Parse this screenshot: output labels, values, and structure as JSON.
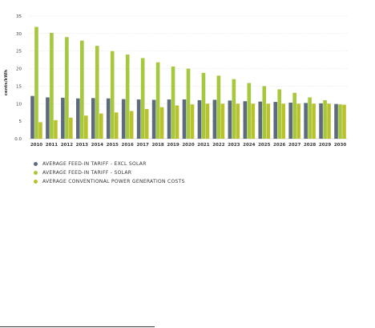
{
  "chart_data": {
    "type": "bar",
    "title": "",
    "xlabel": "",
    "ylabel": "cents/kWh",
    "ylim": [
      0,
      35
    ],
    "yticks": [
      "0.0",
      "5",
      "10",
      "15",
      "20",
      "25",
      "30",
      "35"
    ],
    "grid": true,
    "legend_position": "bottom-left",
    "categories": [
      "2010",
      "2011",
      "2012",
      "2013",
      "2014",
      "2015",
      "2016",
      "2017",
      "2018",
      "2019",
      "2020",
      "2021",
      "2022",
      "2023",
      "2024",
      "2025",
      "2026",
      "2027",
      "2028",
      "2029",
      "2030"
    ],
    "series": [
      {
        "name": "AVERAGE FEED-IN TARIFF - EXCL SOLAR",
        "color": "#5e6b7e",
        "values": [
          12.2,
          11.8,
          11.7,
          11.5,
          11.6,
          11.5,
          11.3,
          11.2,
          11.1,
          11.2,
          11.2,
          11.0,
          11.1,
          10.9,
          10.7,
          10.6,
          10.5,
          10.3,
          10.2,
          10.1,
          9.9
        ]
      },
      {
        "name": "AVERAGE FEED-IN TARIFF - SOLAR",
        "color": "#a6c83c",
        "values": [
          31.9,
          30.2,
          29.0,
          28.0,
          26.5,
          25.0,
          24.0,
          23.0,
          21.8,
          20.6,
          20.0,
          18.8,
          18.0,
          17.0,
          15.9,
          15.0,
          14.1,
          13.1,
          11.8,
          11.0,
          9.8
        ]
      },
      {
        "name": "AVERAGE CONVENTIONAL POWER GENERATION COSTS",
        "color": "#b9c22b",
        "values": [
          4.7,
          5.3,
          6.0,
          6.6,
          7.2,
          7.5,
          7.9,
          8.5,
          9.0,
          9.5,
          9.8,
          10.0,
          10.0,
          10.0,
          10.0,
          10.0,
          10.0,
          10.0,
          10.0,
          10.0,
          9.7
        ]
      }
    ]
  }
}
